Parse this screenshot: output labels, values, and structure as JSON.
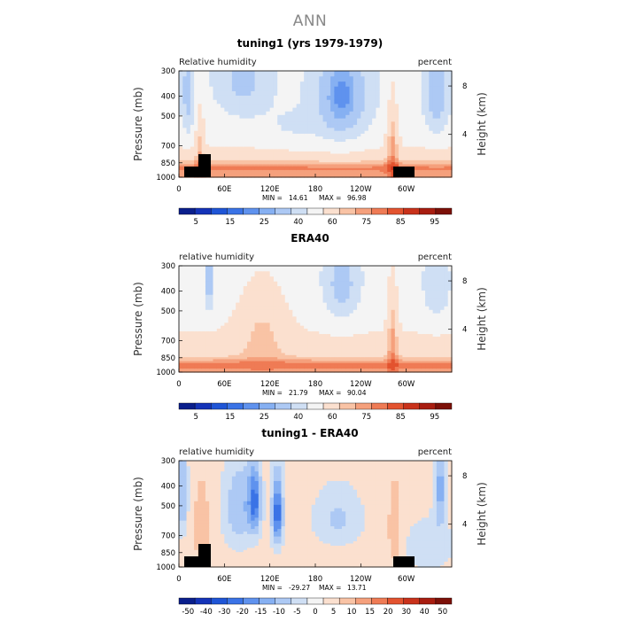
{
  "figure_title": "ANN",
  "chart_data": [
    {
      "type": "heatmap",
      "title": "tuning1 (yrs 1979-1979)",
      "left_label": "Relative humidity",
      "right_label": "percent",
      "ylabel": "Pressure (mb)",
      "y2label": "Height (km)",
      "x_ticks": [
        "0",
        "60E",
        "120E",
        "180",
        "120W",
        "60W"
      ],
      "y_ticks": [
        "300",
        "400",
        "500",
        "700",
        "850",
        "1000"
      ],
      "y2_ticks": [
        "8",
        "4"
      ],
      "min_label": "MIN =",
      "min": "14.61",
      "max_label": "MAX =",
      "max": "96.98",
      "colorbar_ticks": [
        "5",
        "15",
        "25",
        "40",
        "60",
        "75",
        "85",
        "95"
      ],
      "field": "model"
    },
    {
      "type": "heatmap",
      "title": "ERA40",
      "left_label": "relative humidity",
      "right_label": "percent",
      "ylabel": "Pressure (mb)",
      "y2label": "Height (km)",
      "x_ticks": [
        "0",
        "60E",
        "120E",
        "180",
        "120W",
        "60W"
      ],
      "y_ticks": [
        "300",
        "400",
        "500",
        "700",
        "850",
        "1000"
      ],
      "y2_ticks": [
        "8",
        "4"
      ],
      "min_label": "MIN =",
      "min": "21.79",
      "max_label": "MAX =",
      "max": "90.04",
      "colorbar_ticks": [
        "5",
        "15",
        "25",
        "40",
        "60",
        "75",
        "85",
        "95"
      ],
      "field": "obs"
    },
    {
      "type": "heatmap",
      "title": "tuning1 - ERA40",
      "left_label": "relative humidity",
      "right_label": "percent",
      "ylabel": "Pressure (mb)",
      "y2label": "Height (km)",
      "x_ticks": [
        "0",
        "60E",
        "120E",
        "180",
        "120W",
        "60W"
      ],
      "y_ticks": [
        "300",
        "400",
        "500",
        "700",
        "850",
        "1000"
      ],
      "y2_ticks": [
        "8",
        "4"
      ],
      "min_label": "MIN =",
      "min": "-29.27",
      "max_label": "MAX =",
      "max": "13.71",
      "colorbar_ticks": [
        "-50",
        "-40",
        "-30",
        "-20",
        "-15",
        "-10",
        "-5",
        "0",
        "5",
        "10",
        "15",
        "20",
        "30",
        "40",
        "50"
      ],
      "field": "diff"
    }
  ],
  "colors": {
    "palette": [
      "#0a1f8c",
      "#1433b8",
      "#1f55d6",
      "#3a73e6",
      "#5f92ee",
      "#86b0f2",
      "#adc9f4",
      "#cfdff4",
      "#f4f4f4",
      "#fbe0cf",
      "#f9c3a5",
      "#f5a07c",
      "#ef7b55",
      "#e3532f",
      "#c9321b",
      "#a81d10",
      "#7c1008"
    ]
  }
}
